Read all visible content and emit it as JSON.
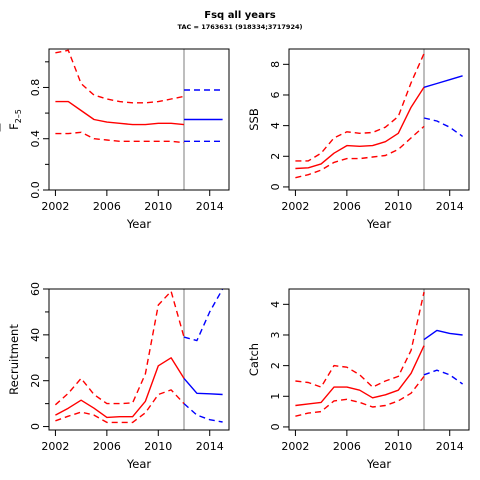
{
  "figure": {
    "title": "Fsq all years",
    "subtitle": "TAC = 1763631 (918334;3717924)"
  },
  "colors": {
    "historic": "#ff0000",
    "projection": "#0000ff",
    "divider": "#bebebe"
  },
  "chart_data": [
    {
      "type": "line",
      "ylabel": "F",
      "ylabel_subscript": "2–5",
      "xlabel": "Year",
      "xlim": [
        2001.5,
        2015.5
      ],
      "ylim": [
        0,
        1.1
      ],
      "xticks": [
        2002,
        2006,
        2010,
        2014
      ],
      "yticks": [
        0.0,
        0.4,
        0.8
      ],
      "minor_yticks": [
        0.2,
        0.6,
        1.0
      ],
      "divider_year": 2012,
      "series": [
        {
          "role": "historic-estimate",
          "style": "solid",
          "x": [
            2002,
            2003,
            2004,
            2005,
            2006,
            2007,
            2008,
            2009,
            2010,
            2011,
            2012
          ],
          "y": [
            0.69,
            0.69,
            0.62,
            0.55,
            0.53,
            0.52,
            0.51,
            0.51,
            0.52,
            0.52,
            0.51
          ]
        },
        {
          "role": "historic-upper",
          "style": "dashed",
          "x": [
            2002,
            2003,
            2004,
            2005,
            2006,
            2007,
            2008,
            2009,
            2010,
            2011,
            2012
          ],
          "y": [
            1.07,
            1.09,
            0.83,
            0.74,
            0.71,
            0.69,
            0.68,
            0.68,
            0.69,
            0.71,
            0.73
          ]
        },
        {
          "role": "historic-lower",
          "style": "dashed",
          "x": [
            2002,
            2003,
            2004,
            2005,
            2006,
            2007,
            2008,
            2009,
            2010,
            2011,
            2012
          ],
          "y": [
            0.44,
            0.44,
            0.45,
            0.4,
            0.39,
            0.38,
            0.38,
            0.38,
            0.38,
            0.38,
            0.37
          ]
        },
        {
          "role": "projection-estimate",
          "style": "solid",
          "x": [
            2012,
            2013,
            2014,
            2015
          ],
          "y": [
            0.55,
            0.55,
            0.55,
            0.55
          ]
        },
        {
          "role": "projection-upper",
          "style": "dashed",
          "x": [
            2012,
            2013,
            2014,
            2015
          ],
          "y": [
            0.78,
            0.78,
            0.78,
            0.78
          ]
        },
        {
          "role": "projection-lower",
          "style": "dashed",
          "x": [
            2012,
            2013,
            2014,
            2015
          ],
          "y": [
            0.38,
            0.38,
            0.38,
            0.38
          ]
        }
      ]
    },
    {
      "type": "line",
      "ylabel": "SSB",
      "xlabel": "Year",
      "xlim": [
        2001.5,
        2015.5
      ],
      "ylim": [
        -0.2,
        9.0
      ],
      "xticks": [
        2002,
        2006,
        2010,
        2014
      ],
      "yticks": [
        0,
        2,
        4,
        6,
        8
      ],
      "minor_yticks": [],
      "divider_year": 2012,
      "series": [
        {
          "role": "historic-estimate",
          "style": "solid",
          "x": [
            2002,
            2003,
            2004,
            2005,
            2006,
            2007,
            2008,
            2009,
            2010,
            2011,
            2012
          ],
          "y": [
            1.2,
            1.25,
            1.5,
            2.2,
            2.7,
            2.65,
            2.7,
            2.95,
            3.5,
            5.2,
            6.5
          ]
        },
        {
          "role": "historic-upper",
          "style": "dashed",
          "x": [
            2002,
            2003,
            2004,
            2005,
            2006,
            2007,
            2008,
            2009,
            2010,
            2011,
            2012
          ],
          "y": [
            1.7,
            1.7,
            2.2,
            3.2,
            3.6,
            3.5,
            3.55,
            3.9,
            4.6,
            6.8,
            8.7
          ]
        },
        {
          "role": "historic-lower",
          "style": "dashed",
          "x": [
            2002,
            2003,
            2004,
            2005,
            2006,
            2007,
            2008,
            2009,
            2010,
            2011,
            2012
          ],
          "y": [
            0.6,
            0.8,
            1.1,
            1.6,
            1.85,
            1.85,
            1.95,
            2.05,
            2.45,
            3.2,
            3.95
          ]
        },
        {
          "role": "projection-upper",
          "style": "solid",
          "x": [
            2012,
            2013,
            2014,
            2015
          ],
          "y": [
            6.5,
            6.75,
            7.0,
            7.25
          ]
        },
        {
          "role": "projection-lower",
          "style": "dashed",
          "x": [
            2012,
            2013,
            2014,
            2015
          ],
          "y": [
            4.5,
            4.3,
            3.9,
            3.3
          ]
        }
      ]
    },
    {
      "type": "line",
      "ylabel": "Recruitment",
      "xlabel": "Year",
      "xlim": [
        2001.5,
        2015.5
      ],
      "ylim": [
        -1.5,
        60
      ],
      "xticks": [
        2002,
        2006,
        2010,
        2014
      ],
      "yticks": [
        0,
        20,
        40,
        60
      ],
      "minor_yticks": [
        10,
        30,
        50
      ],
      "divider_year": 2012,
      "series": [
        {
          "role": "historic-estimate",
          "style": "solid",
          "x": [
            2002,
            2003,
            2004,
            2005,
            2006,
            2007,
            2008,
            2009,
            2010,
            2011,
            2012
          ],
          "y": [
            5,
            8,
            11.5,
            8,
            4,
            4.3,
            4.3,
            11,
            26.5,
            30,
            21
          ]
        },
        {
          "role": "historic-upper",
          "style": "dashed",
          "x": [
            2002,
            2003,
            2004,
            2005,
            2006,
            2007,
            2008,
            2009,
            2010,
            2011,
            2012
          ],
          "y": [
            9.5,
            14.5,
            21,
            14,
            10,
            10,
            10.3,
            23,
            53,
            59,
            39
          ]
        },
        {
          "role": "historic-lower",
          "style": "dashed",
          "x": [
            2002,
            2003,
            2004,
            2005,
            2006,
            2007,
            2008,
            2009,
            2010,
            2011,
            2012
          ],
          "y": [
            2.5,
            4.5,
            6.3,
            5,
            1.8,
            1.8,
            1.8,
            6,
            14,
            16,
            10
          ]
        },
        {
          "role": "projection-estimate",
          "style": "solid",
          "x": [
            2012,
            2013,
            2014,
            2015
          ],
          "y": [
            21,
            14.5,
            14.3,
            14
          ]
        },
        {
          "role": "projection-upper",
          "style": "dashed",
          "x": [
            2012,
            2013,
            2014,
            2015
          ],
          "y": [
            39,
            37.5,
            50,
            60
          ]
        },
        {
          "role": "projection-lower",
          "style": "dashed",
          "x": [
            2012,
            2013,
            2014,
            2015
          ],
          "y": [
            10,
            5,
            3,
            2
          ]
        }
      ]
    },
    {
      "type": "line",
      "ylabel": "Catch",
      "xlabel": "Year",
      "xlim": [
        2001.5,
        2015.5
      ],
      "ylim": [
        -0.1,
        4.5
      ],
      "xticks": [
        2002,
        2006,
        2010,
        2014
      ],
      "yticks": [
        0,
        1,
        2,
        3,
        4
      ],
      "minor_yticks": [],
      "divider_year": 2012,
      "series": [
        {
          "role": "historic-estimate",
          "style": "solid",
          "x": [
            2002,
            2003,
            2004,
            2005,
            2006,
            2007,
            2008,
            2009,
            2010,
            2011,
            2012
          ],
          "y": [
            0.7,
            0.75,
            0.8,
            1.3,
            1.3,
            1.2,
            0.95,
            1.05,
            1.2,
            1.75,
            2.65
          ]
        },
        {
          "role": "historic-upper",
          "style": "dashed",
          "x": [
            2002,
            2003,
            2004,
            2005,
            2006,
            2007,
            2008,
            2009,
            2010,
            2011,
            2012
          ],
          "y": [
            1.5,
            1.45,
            1.3,
            2.0,
            1.95,
            1.7,
            1.3,
            1.5,
            1.65,
            2.5,
            4.4
          ]
        },
        {
          "role": "historic-lower",
          "style": "dashed",
          "x": [
            2002,
            2003,
            2004,
            2005,
            2006,
            2007,
            2008,
            2009,
            2010,
            2011,
            2012
          ],
          "y": [
            0.35,
            0.45,
            0.5,
            0.85,
            0.9,
            0.8,
            0.65,
            0.7,
            0.85,
            1.1,
            1.65
          ]
        },
        {
          "role": "projection-estimate",
          "style": "solid",
          "x": [
            2012,
            2013,
            2014,
            2015
          ],
          "y": [
            2.85,
            3.15,
            3.05,
            3.0
          ]
        },
        {
          "role": "projection-lower",
          "style": "dashed",
          "x": [
            2012,
            2013,
            2014,
            2015
          ],
          "y": [
            1.7,
            1.85,
            1.7,
            1.4
          ]
        }
      ]
    }
  ]
}
